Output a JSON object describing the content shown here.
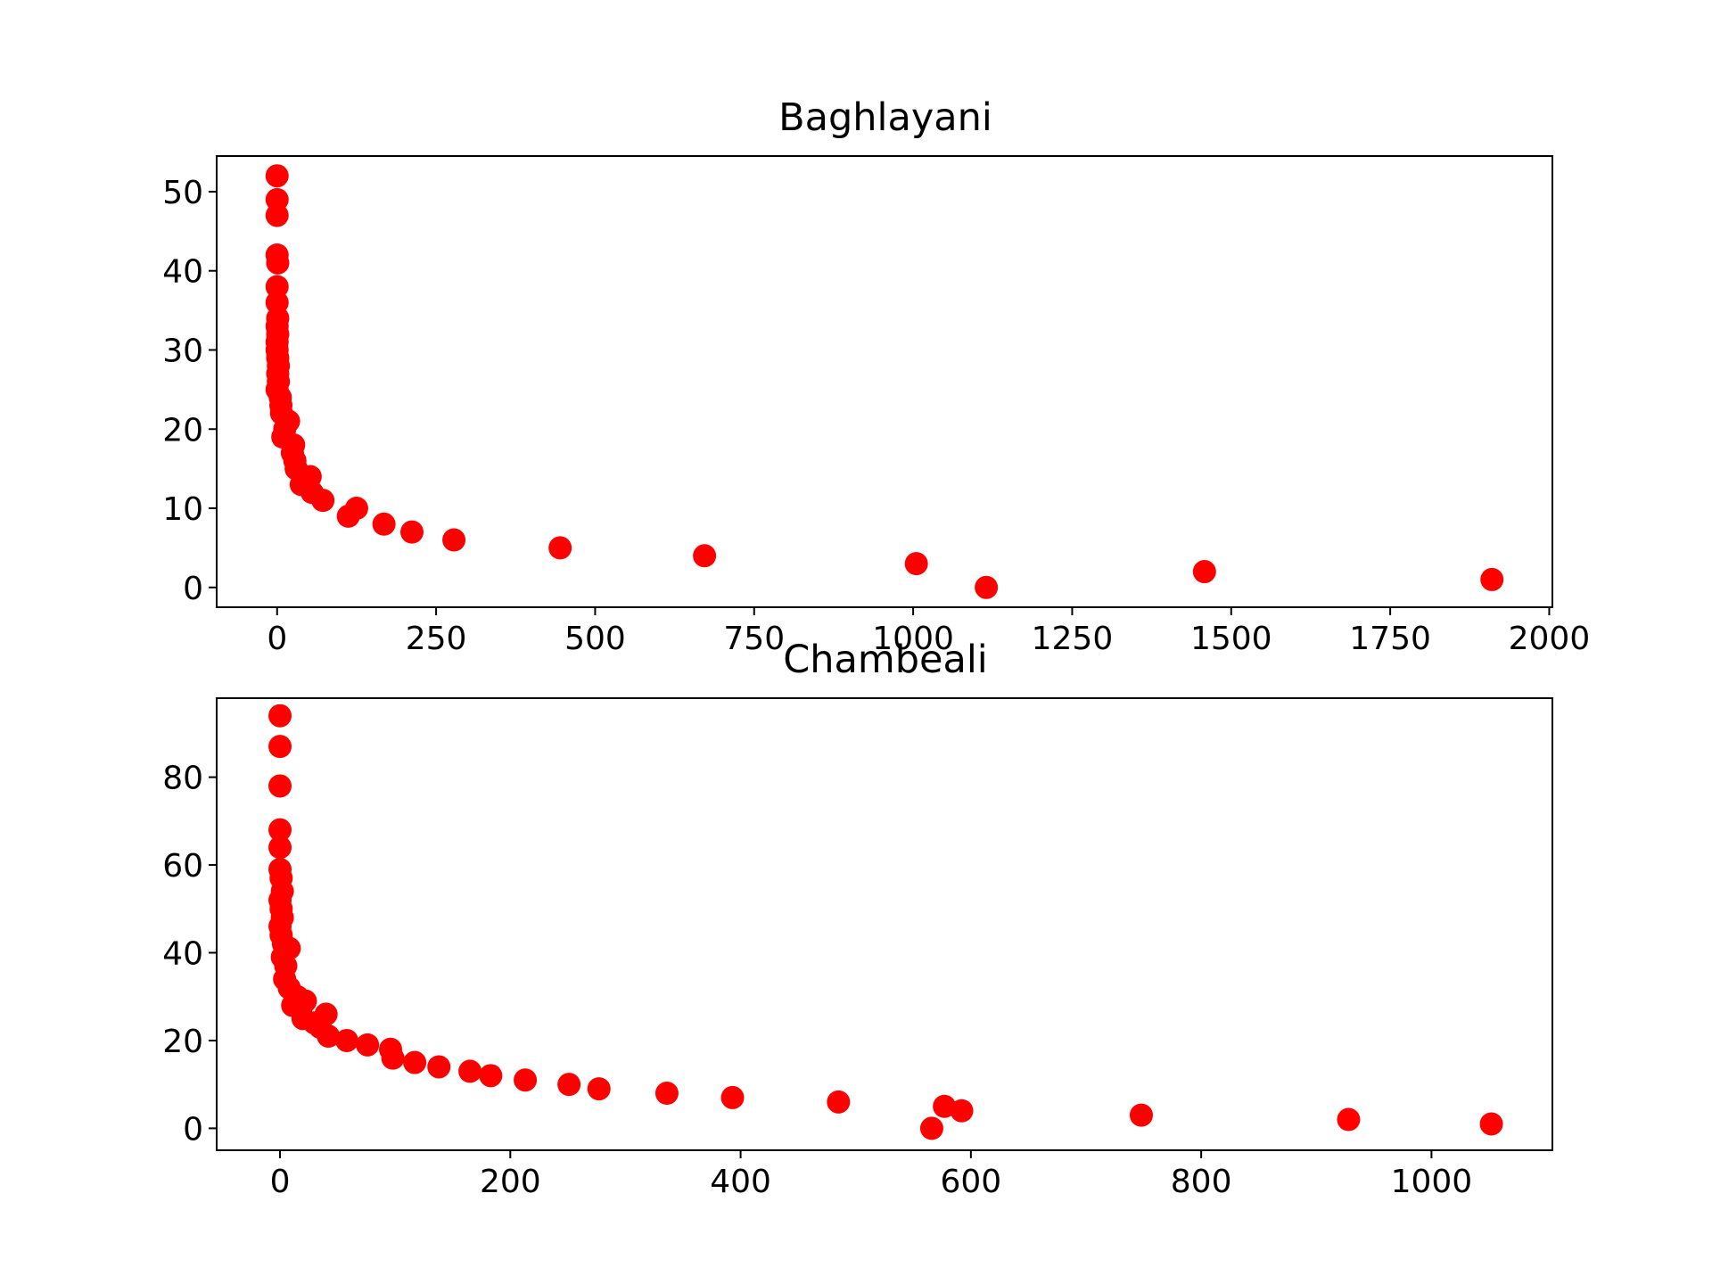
{
  "chart_data": [
    {
      "type": "scatter",
      "title": "Baghlayani",
      "xlabel": "",
      "ylabel": "",
      "xlim": [
        -95,
        2005
      ],
      "ylim": [
        -2.5,
        54.5
      ],
      "xticks": [
        0,
        250,
        500,
        750,
        1000,
        1250,
        1500,
        1750,
        2000
      ],
      "yticks": [
        0,
        10,
        20,
        30,
        40,
        50
      ],
      "marker_color": "#ff0000",
      "grid": false,
      "series": [
        {
          "points": [
            [
              0,
              52
            ],
            [
              0,
              49
            ],
            [
              0,
              47
            ],
            [
              0,
              42
            ],
            [
              1,
              41
            ],
            [
              0,
              38
            ],
            [
              0,
              36
            ],
            [
              1,
              34
            ],
            [
              0,
              33
            ],
            [
              1,
              32
            ],
            [
              0,
              31
            ],
            [
              0,
              30
            ],
            [
              1,
              29
            ],
            [
              2,
              28
            ],
            [
              1,
              27
            ],
            [
              2,
              26
            ],
            [
              0,
              25
            ],
            [
              5,
              24
            ],
            [
              6,
              23
            ],
            [
              7,
              22
            ],
            [
              18,
              21
            ],
            [
              12,
              20
            ],
            [
              9,
              19
            ],
            [
              26,
              18
            ],
            [
              24,
              17
            ],
            [
              28,
              16
            ],
            [
              30,
              15
            ],
            [
              52,
              14
            ],
            [
              38,
              13
            ],
            [
              55,
              12
            ],
            [
              72,
              11
            ],
            [
              125,
              10
            ],
            [
              112,
              9
            ],
            [
              168,
              8
            ],
            [
              212,
              7
            ],
            [
              278,
              6
            ],
            [
              445,
              5
            ],
            [
              672,
              4
            ],
            [
              1005,
              3
            ],
            [
              1458,
              2
            ],
            [
              1910,
              1
            ],
            [
              1115,
              0
            ]
          ]
        }
      ]
    },
    {
      "type": "scatter",
      "title": "Chambeali",
      "xlabel": "",
      "ylabel": "",
      "xlim": [
        -55,
        1105
      ],
      "ylim": [
        -5,
        98
      ],
      "xticks": [
        0,
        200,
        400,
        600,
        800,
        1000
      ],
      "yticks": [
        0,
        20,
        40,
        60,
        80
      ],
      "marker_color": "#ff0000",
      "grid": false,
      "series": [
        {
          "points": [
            [
              0,
              94
            ],
            [
              0,
              87
            ],
            [
              0,
              78
            ],
            [
              0,
              68
            ],
            [
              0,
              64
            ],
            [
              0,
              59
            ],
            [
              1,
              57
            ],
            [
              2,
              54
            ],
            [
              0,
              52
            ],
            [
              1,
              50
            ],
            [
              2,
              48
            ],
            [
              0,
              46
            ],
            [
              1,
              44
            ],
            [
              3,
              42
            ],
            [
              8,
              41
            ],
            [
              2,
              39
            ],
            [
              5,
              37
            ],
            [
              4,
              34
            ],
            [
              8,
              32
            ],
            [
              15,
              30
            ],
            [
              22,
              29
            ],
            [
              11,
              28
            ],
            [
              18,
              27
            ],
            [
              40,
              26
            ],
            [
              20,
              25
            ],
            [
              30,
              24
            ],
            [
              35,
              23
            ],
            [
              42,
              21
            ],
            [
              58,
              20
            ],
            [
              76,
              19
            ],
            [
              96,
              18
            ],
            [
              98,
              16
            ],
            [
              117,
              15
            ],
            [
              138,
              14
            ],
            [
              165,
              13
            ],
            [
              183,
              12
            ],
            [
              213,
              11
            ],
            [
              251,
              10
            ],
            [
              277,
              9
            ],
            [
              336,
              8
            ],
            [
              393,
              7
            ],
            [
              485,
              6
            ],
            [
              577,
              5
            ],
            [
              592,
              4
            ],
            [
              748,
              3
            ],
            [
              928,
              2
            ],
            [
              1052,
              1
            ],
            [
              566,
              0
            ]
          ]
        }
      ]
    }
  ]
}
